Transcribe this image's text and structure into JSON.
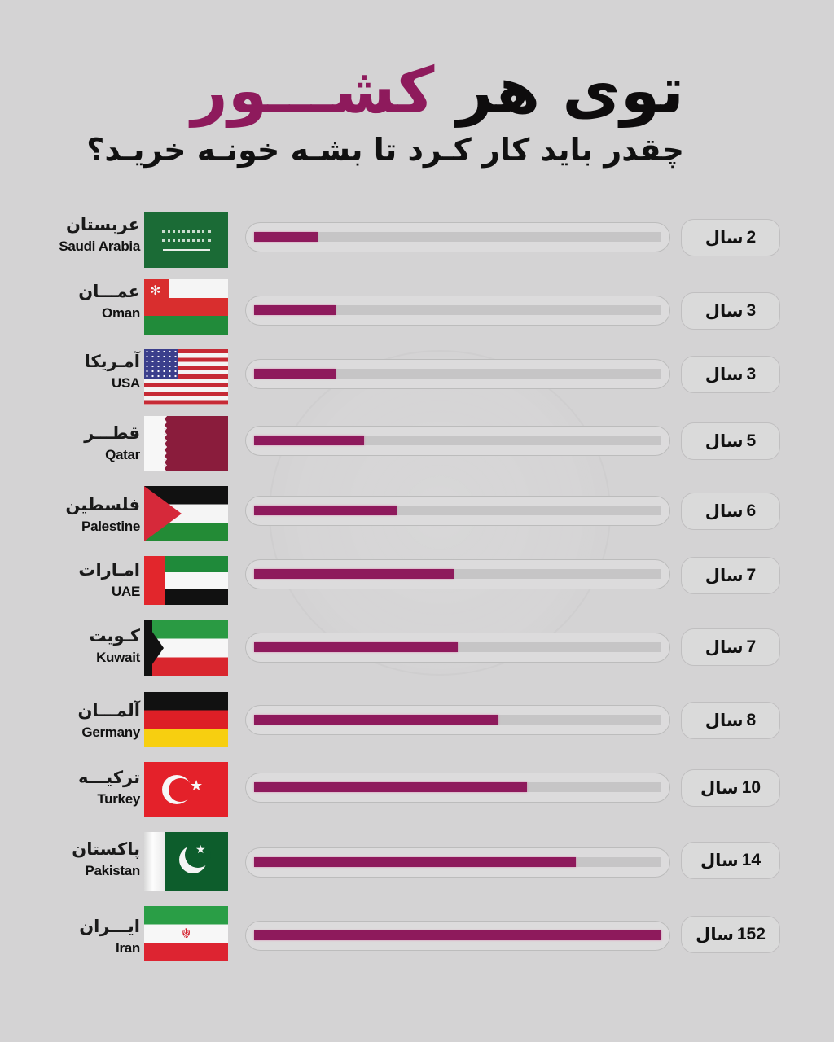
{
  "header": {
    "title_part_black": "توی هر ",
    "title_part_accent": "کشـــور",
    "subtitle": "چقدر باید کار کـرد تا بشـه خونـه خریـد؟"
  },
  "unit_label": "سال",
  "colors": {
    "background": "#d4d3d4",
    "accent": "#8e1a5c",
    "track": "#c6c5c6",
    "text": "#111111"
  },
  "rows": [
    {
      "name_fa": "عربستان",
      "name_en": "Saudi Arabia",
      "flag_icon": "saudi-arabia-flag-icon",
      "years": "2",
      "fill_pct": 15.5
    },
    {
      "name_fa": "عمـــان",
      "name_en": "Oman",
      "flag_icon": "oman-flag-icon",
      "years": "3",
      "fill_pct": 20
    },
    {
      "name_fa": "آمـریکا",
      "name_en": "USA",
      "flag_icon": "usa-flag-icon",
      "years": "3",
      "fill_pct": 20
    },
    {
      "name_fa": "قطـــر",
      "name_en": "Qatar",
      "flag_icon": "qatar-flag-icon",
      "years": "5",
      "fill_pct": 27
    },
    {
      "name_fa": "فلسطین",
      "name_en": "Palestine",
      "flag_icon": "palestine-flag-icon",
      "years": "6",
      "fill_pct": 35
    },
    {
      "name_fa": "امـارات",
      "name_en": "UAE",
      "flag_icon": "uae-flag-icon",
      "years": "7",
      "fill_pct": 49
    },
    {
      "name_fa": "کـویت",
      "name_en": "Kuwait",
      "flag_icon": "kuwait-flag-icon",
      "years": "7",
      "fill_pct": 50
    },
    {
      "name_fa": "آلمـــان",
      "name_en": "Germany",
      "flag_icon": "germany-flag-icon",
      "years": "8",
      "fill_pct": 60
    },
    {
      "name_fa": "ترکیـــه",
      "name_en": "Turkey",
      "flag_icon": "turkey-flag-icon",
      "years": "10",
      "fill_pct": 67
    },
    {
      "name_fa": "پاکستان",
      "name_en": "Pakistan",
      "flag_icon": "pakistan-flag-icon",
      "years": "14",
      "fill_pct": 79
    },
    {
      "name_fa": "ایـــران",
      "name_en": "Iran",
      "flag_icon": "iran-flag-icon",
      "years": "152",
      "fill_pct": 100
    }
  ],
  "chart_data": {
    "type": "bar",
    "orientation": "horizontal",
    "title": "توی هر کشور",
    "subtitle": "چقدر باید کار کرد تا بشه خونه خرید؟",
    "categories": [
      "Saudi Arabia",
      "Oman",
      "USA",
      "Qatar",
      "Palestine",
      "UAE",
      "Kuwait",
      "Germany",
      "Turkey",
      "Pakistan",
      "Iran"
    ],
    "categories_fa": [
      "عربستان",
      "عمان",
      "آمریکا",
      "قطر",
      "فلسطین",
      "امارات",
      "کویت",
      "آلمان",
      "ترکیه",
      "پاکستان",
      "ایران"
    ],
    "values": [
      2,
      3,
      3,
      5,
      6,
      7,
      7,
      8,
      10,
      14,
      152
    ],
    "value_unit": "سال (years)",
    "bar_fill_percent_visual": [
      15.5,
      20,
      20,
      27,
      35,
      49,
      50,
      60,
      67,
      79,
      100
    ],
    "xlabel": "",
    "ylabel": "",
    "grid": false,
    "legend": null,
    "bar_color": "#8e1a5c"
  }
}
